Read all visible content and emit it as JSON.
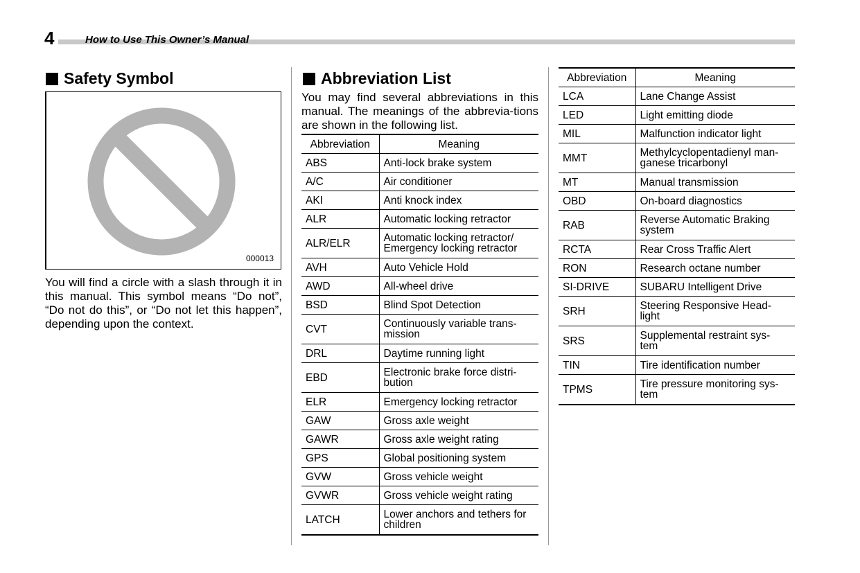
{
  "header": {
    "page_number": "4",
    "title": "How to Use This Owner’s Manual"
  },
  "safety": {
    "heading": "Safety Symbol",
    "figure_code": "000013",
    "icon": "prohibition-circle-slash-icon",
    "symbol_color": "#b3b3b3",
    "text": "You will find a circle with a slash through it in this manual. This symbol means “Do not”, “Do not do this”, or “Do not let this happen”, depending upon the context."
  },
  "abbreviations": {
    "heading": "Abbreviation List",
    "intro": "You may find several abbreviations in this manual. The meanings of the abbrevia-tions are shown in the following list.",
    "col_abbr": "Abbreviation",
    "col_meaning": "Meaning",
    "table1": [
      {
        "abbr": "ABS",
        "meaning": "Anti-lock brake system"
      },
      {
        "abbr": "A/C",
        "meaning": "Air conditioner"
      },
      {
        "abbr": "AKI",
        "meaning": "Anti knock index"
      },
      {
        "abbr": "ALR",
        "meaning": "Automatic locking retractor"
      },
      {
        "abbr": "ALR/ELR",
        "meaning": "Automatic locking retractor/\nEmergency locking retractor"
      },
      {
        "abbr": "AVH",
        "meaning": "Auto Vehicle Hold"
      },
      {
        "abbr": "AWD",
        "meaning": "All-wheel drive"
      },
      {
        "abbr": "BSD",
        "meaning": "Blind Spot Detection"
      },
      {
        "abbr": "CVT",
        "meaning": "Continuously variable trans-\nmission"
      },
      {
        "abbr": "DRL",
        "meaning": "Daytime running light"
      },
      {
        "abbr": "EBD",
        "meaning": "Electronic brake force distri-\nbution"
      },
      {
        "abbr": "ELR",
        "meaning": "Emergency locking retractor"
      },
      {
        "abbr": "GAW",
        "meaning": "Gross axle weight"
      },
      {
        "abbr": "GAWR",
        "meaning": "Gross axle weight rating"
      },
      {
        "abbr": "GPS",
        "meaning": "Global positioning system"
      },
      {
        "abbr": "GVW",
        "meaning": "Gross vehicle weight"
      },
      {
        "abbr": "GVWR",
        "meaning": "Gross vehicle weight rating"
      },
      {
        "abbr": "LATCH",
        "meaning": "Lower anchors and tethers for\nchildren"
      }
    ],
    "table2": [
      {
        "abbr": "LCA",
        "meaning": "Lane Change Assist"
      },
      {
        "abbr": "LED",
        "meaning": "Light emitting diode"
      },
      {
        "abbr": "MIL",
        "meaning": "Malfunction indicator light"
      },
      {
        "abbr": "MMT",
        "meaning": "Methylcyclopentadienyl man-\nganese tricarbonyl"
      },
      {
        "abbr": "MT",
        "meaning": "Manual transmission"
      },
      {
        "abbr": "OBD",
        "meaning": "On-board diagnostics"
      },
      {
        "abbr": "RAB",
        "meaning": "Reverse Automatic Braking\nsystem"
      },
      {
        "abbr": "RCTA",
        "meaning": "Rear Cross Traffic Alert"
      },
      {
        "abbr": "RON",
        "meaning": "Research octane number"
      },
      {
        "abbr": "SI-DRIVE",
        "meaning": "SUBARU Intelligent Drive"
      },
      {
        "abbr": "SRH",
        "meaning": "Steering Responsive Head-\nlight"
      },
      {
        "abbr": "SRS",
        "meaning": "Supplemental restraint sys-\ntem"
      },
      {
        "abbr": "TIN",
        "meaning": "Tire identification number"
      },
      {
        "abbr": "TPMS",
        "meaning": "Tire pressure monitoring sys-\ntem"
      }
    ]
  }
}
